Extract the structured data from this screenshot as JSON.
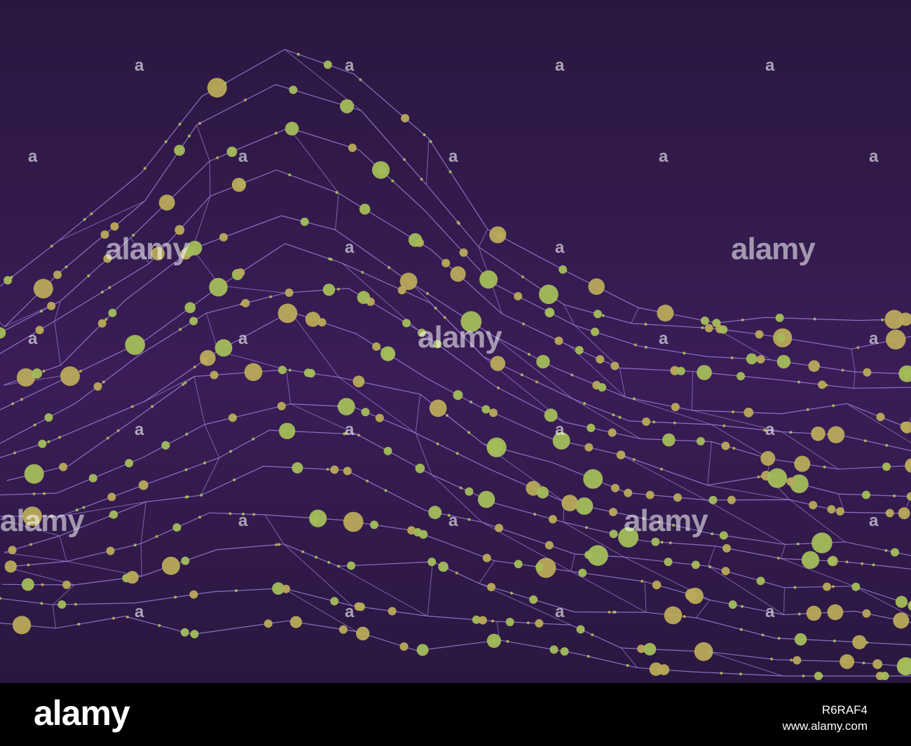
{
  "image": {
    "background_top": "#2a1740",
    "background_mid": "#3a1d57",
    "background_bottom": "#2a1740",
    "line_color": "#9b7fd6",
    "dot_colors": [
      "#a3bd5a",
      "#b9aa5a"
    ]
  },
  "watermark": {
    "big": "alamy",
    "small": "a"
  },
  "footer": {
    "logo": "alamy",
    "image_id": "R6RAF4",
    "url": "www.alamy.com"
  }
}
